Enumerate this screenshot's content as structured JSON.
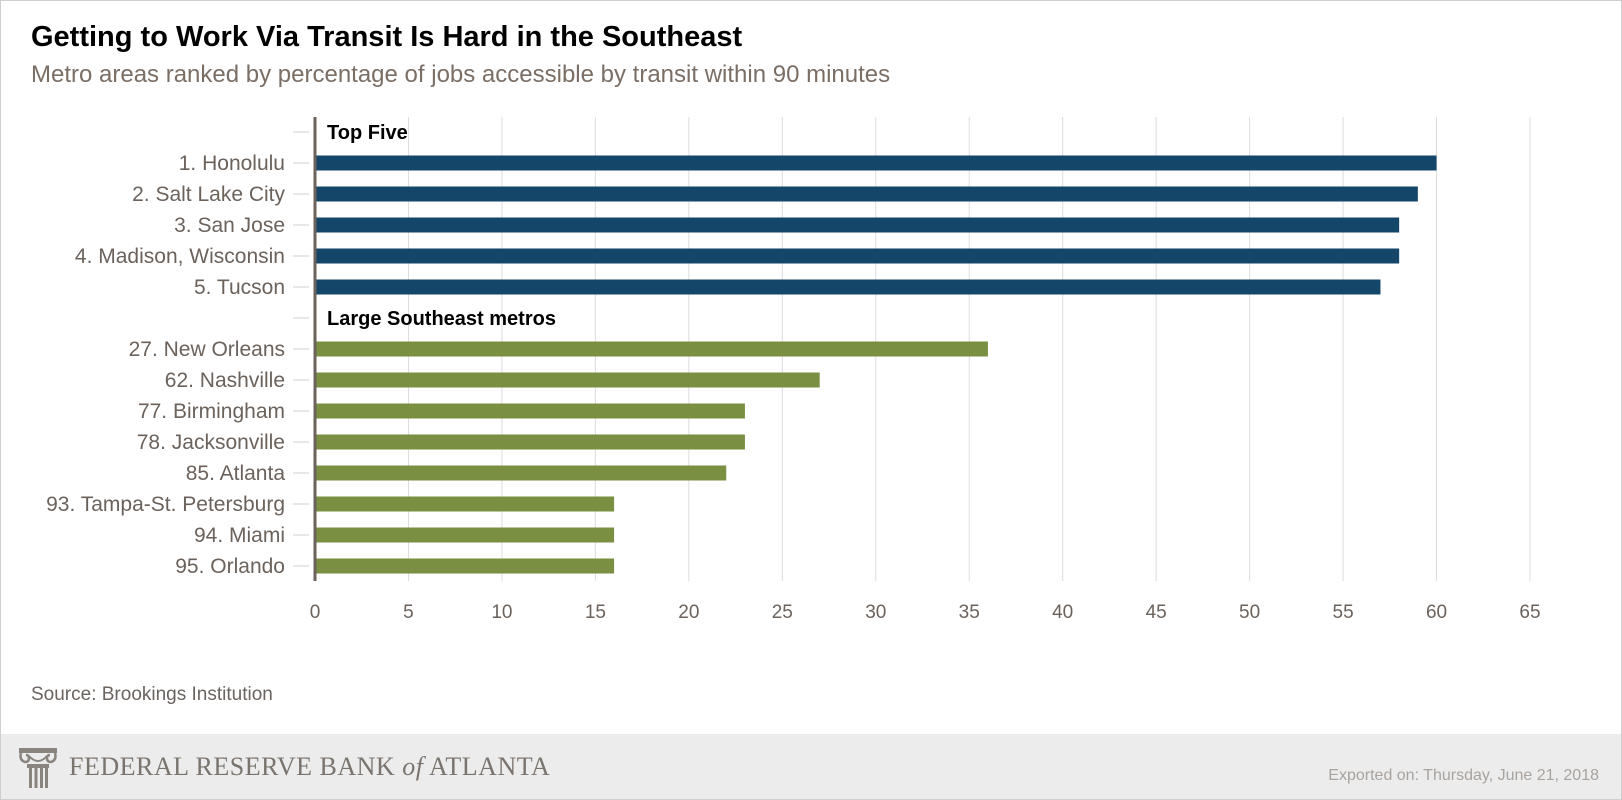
{
  "title": "Getting to Work Via Transit Is Hard in the Southeast",
  "subtitle": "Metro areas ranked by percentage of jobs accessible by transit within 90 minutes",
  "source": "Source: Brookings Institution",
  "footer": {
    "logo_text_before": "FEDERAL RESERVE BANK ",
    "logo_text_of": "of",
    "logo_text_after": " ATLANTA",
    "exported": "Exported on: Thursday, June 21, 2018"
  },
  "colors": {
    "top_five": "#14466a",
    "southeast": "#7a8f42",
    "grid": "#dcdcdc",
    "axis": "#6b625c",
    "label": "#6b625c"
  },
  "chart_data": {
    "type": "bar",
    "orientation": "horizontal",
    "xlim": [
      0,
      65
    ],
    "xticks": [
      0,
      5,
      10,
      15,
      20,
      25,
      30,
      35,
      40,
      45,
      50,
      55,
      60,
      65
    ],
    "grid": true,
    "groups": [
      {
        "name": "Top Five",
        "color": "#14466a",
        "categories": [
          "1. Honolulu",
          "2. Salt Lake City",
          "3. San Jose",
          "4. Madison, Wisconsin",
          "5. Tucson"
        ],
        "values": [
          60,
          59,
          58,
          58,
          57
        ]
      },
      {
        "name": "Large Southeast metros",
        "color": "#7a8f42",
        "categories": [
          "27. New Orleans",
          "62. Nashville",
          "77. Birmingham",
          "78. Jacksonville",
          "85. Atlanta",
          "93. Tampa-St. Petersburg",
          "94. Miami",
          "95. Orlando"
        ],
        "values": [
          36,
          27,
          23,
          23,
          22,
          16,
          16,
          16
        ]
      }
    ]
  }
}
